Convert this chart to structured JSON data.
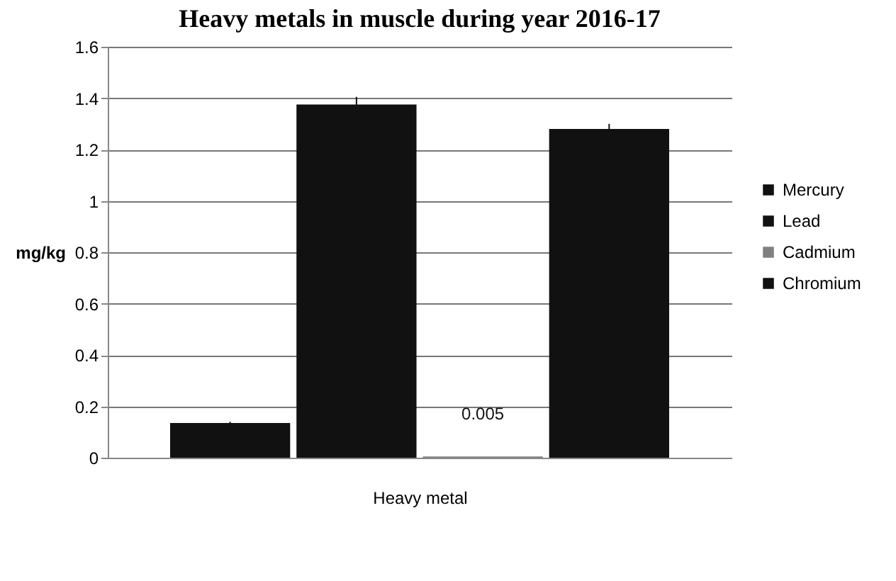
{
  "chart_data": {
    "type": "bar",
    "title": "Heavy metals in muscle during year 2016-17",
    "xlabel": "Heavy metal",
    "ylabel": "mg/kg",
    "categories": [
      null
    ],
    "series": [
      {
        "name": "Mercury",
        "color": "#111111",
        "values": [
          0.135
        ],
        "errors": [
          0.005
        ]
      },
      {
        "name": "Lead",
        "color": "#111111",
        "values": [
          1.375
        ],
        "errors": [
          0.03
        ]
      },
      {
        "name": "Cadmium",
        "color": "#808080",
        "values": [
          0.005
        ],
        "value_labels": [
          "0.005"
        ]
      },
      {
        "name": "Chromium",
        "color": "#111111",
        "values": [
          1.28
        ],
        "errors": [
          0.02
        ]
      }
    ],
    "ylim": [
      0,
      1.6
    ],
    "yticks": [
      0,
      0.2,
      0.4,
      0.6,
      0.8,
      1,
      1.2,
      1.4,
      1.6
    ],
    "grid": "y",
    "legend": "right"
  }
}
